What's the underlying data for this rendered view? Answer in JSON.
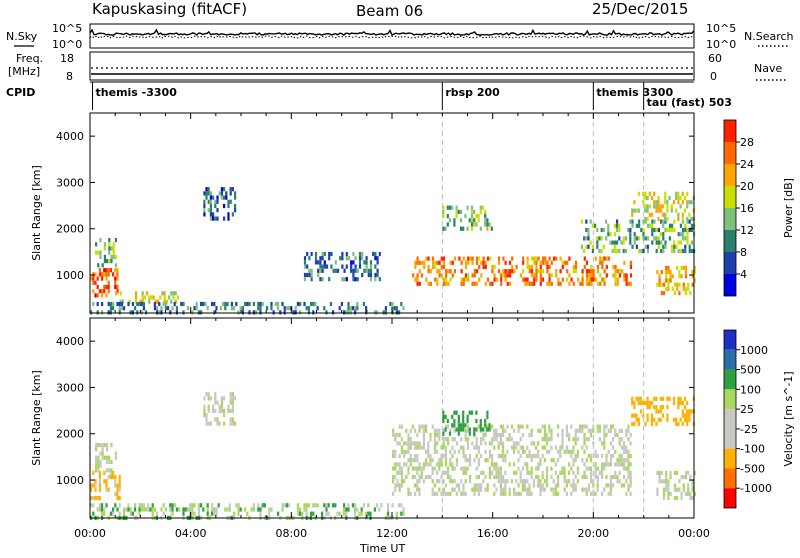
{
  "header": {
    "station": "Kapuskasing (fitACF)",
    "beam": "Beam 06",
    "date": "25/Dec/2015"
  },
  "top_panel": {
    "nsky_label": "N.Sky",
    "nsky_ticks": [
      "10^5",
      "10^0"
    ],
    "nsearch_ticks": [
      "10^5",
      "10^0"
    ],
    "nsearch_label": "N.Search",
    "freq_label_line1": "Freq.",
    "freq_label_line2": "[MHz]",
    "freq_ticks": [
      "18",
      "8"
    ],
    "nave_ticks": [
      "60",
      "0"
    ],
    "nave_label": "Nave",
    "cpid_label": "CPID"
  },
  "cpid_segments": [
    {
      "label": "themis -3300",
      "start_hour": 0.1
    },
    {
      "label": "rbsp 200",
      "start_hour": 14.0
    },
    {
      "label": "themis 3300",
      "start_hour": 20.0
    },
    {
      "label": "tau (fast) 503",
      "start_hour": 22.0
    }
  ],
  "colors": {
    "power_scale": [
      "#0000e0",
      "#1f3fae",
      "#2a7f6e",
      "#7fc07f",
      "#c8e000",
      "#ffa500",
      "#ff6a00",
      "#ff2000",
      "#d40000"
    ],
    "velocity_scale": [
      "#ff0000",
      "#ff7000",
      "#ffb000",
      "#c8c8c0",
      "#c8c8c0",
      "#a8d860",
      "#2fa040",
      "#2a6ea8",
      "#1a30c0"
    ]
  },
  "chart_data": [
    {
      "type": "heatmap",
      "name": "power",
      "xlabel": "Time UT",
      "ylabel": "Slant Range [km]",
      "colorbar_label": "Power [dB]",
      "colorbar_ticks": [
        "28",
        "24",
        "20",
        "16",
        "12",
        "8",
        "4"
      ],
      "xlim_hours": [
        0,
        24
      ],
      "ylim_km": [
        180,
        4500
      ],
      "y_ticks": [
        "4000",
        "3000",
        "2000",
        "1000"
      ],
      "x_ticks": [
        "00:00",
        "04:00",
        "08:00",
        "12:00",
        "16:00",
        "20:00",
        "00:00"
      ],
      "mode_change_hours": [
        14.0,
        20.0,
        22.0
      ],
      "regions": [
        {
          "t": [
            0.0,
            1.2
          ],
          "r": [
            550,
            1150
          ],
          "value_db": 27
        },
        {
          "t": [
            0.2,
            1.0
          ],
          "r": [
            1200,
            1800
          ],
          "value_db": 14
        },
        {
          "t": [
            1.0,
            3.5
          ],
          "r": [
            420,
            650
          ],
          "value_db": 18
        },
        {
          "t": [
            0.0,
            12.5
          ],
          "r": [
            200,
            420
          ],
          "value_db": 10
        },
        {
          "t": [
            4.5,
            5.8
          ],
          "r": [
            2200,
            2900
          ],
          "value_db": 8
        },
        {
          "t": [
            8.5,
            11.5
          ],
          "r": [
            900,
            1500
          ],
          "value_db": 9
        },
        {
          "t": [
            12.8,
            21.5
          ],
          "r": [
            800,
            1400
          ],
          "value_db": 24
        },
        {
          "t": [
            14.0,
            16.0
          ],
          "r": [
            2000,
            2500
          ],
          "value_db": 15
        },
        {
          "t": [
            19.5,
            24.0
          ],
          "r": [
            1500,
            2200
          ],
          "value_db": 13
        },
        {
          "t": [
            21.5,
            24.0
          ],
          "r": [
            2200,
            2800
          ],
          "value_db": 18
        },
        {
          "t": [
            22.5,
            24.0
          ],
          "r": [
            600,
            1200
          ],
          "value_db": 22
        }
      ]
    },
    {
      "type": "heatmap",
      "name": "velocity",
      "xlabel": "Time UT",
      "ylabel": "Slant Range [km]",
      "colorbar_label": "Velocity [m s^-1]",
      "colorbar_ticks": [
        "1000",
        "500",
        "100",
        "25",
        "-25",
        "-100",
        "-500",
        "-1000"
      ],
      "xlim_hours": [
        0,
        24
      ],
      "ylim_km": [
        180,
        4500
      ],
      "y_ticks": [
        "4000",
        "3000",
        "2000",
        "1000"
      ],
      "x_ticks": [
        "00:00",
        "04:00",
        "08:00",
        "12:00",
        "16:00",
        "20:00",
        "00:00"
      ],
      "mode_change_hours": [
        14.0,
        20.0,
        22.0
      ],
      "regions": [
        {
          "t": [
            0.0,
            1.2
          ],
          "r": [
            600,
            1200
          ],
          "value_ms": -150
        },
        {
          "t": [
            0.2,
            1.0
          ],
          "r": [
            1200,
            1800
          ],
          "value_ms": 0
        },
        {
          "t": [
            0.0,
            12.5
          ],
          "r": [
            200,
            500
          ],
          "value_ms": 60
        },
        {
          "t": [
            4.5,
            5.8
          ],
          "r": [
            2200,
            2900
          ],
          "value_ms": 0
        },
        {
          "t": [
            12.0,
            21.5
          ],
          "r": [
            700,
            2200
          ],
          "value_ms": 0
        },
        {
          "t": [
            14.0,
            16.0
          ],
          "r": [
            2000,
            2500
          ],
          "value_ms": 200
        },
        {
          "t": [
            21.5,
            24.0
          ],
          "r": [
            2200,
            2800
          ],
          "value_ms": -250
        },
        {
          "t": [
            22.5,
            24.0
          ],
          "r": [
            600,
            1200
          ],
          "value_ms": 0
        }
      ]
    }
  ]
}
